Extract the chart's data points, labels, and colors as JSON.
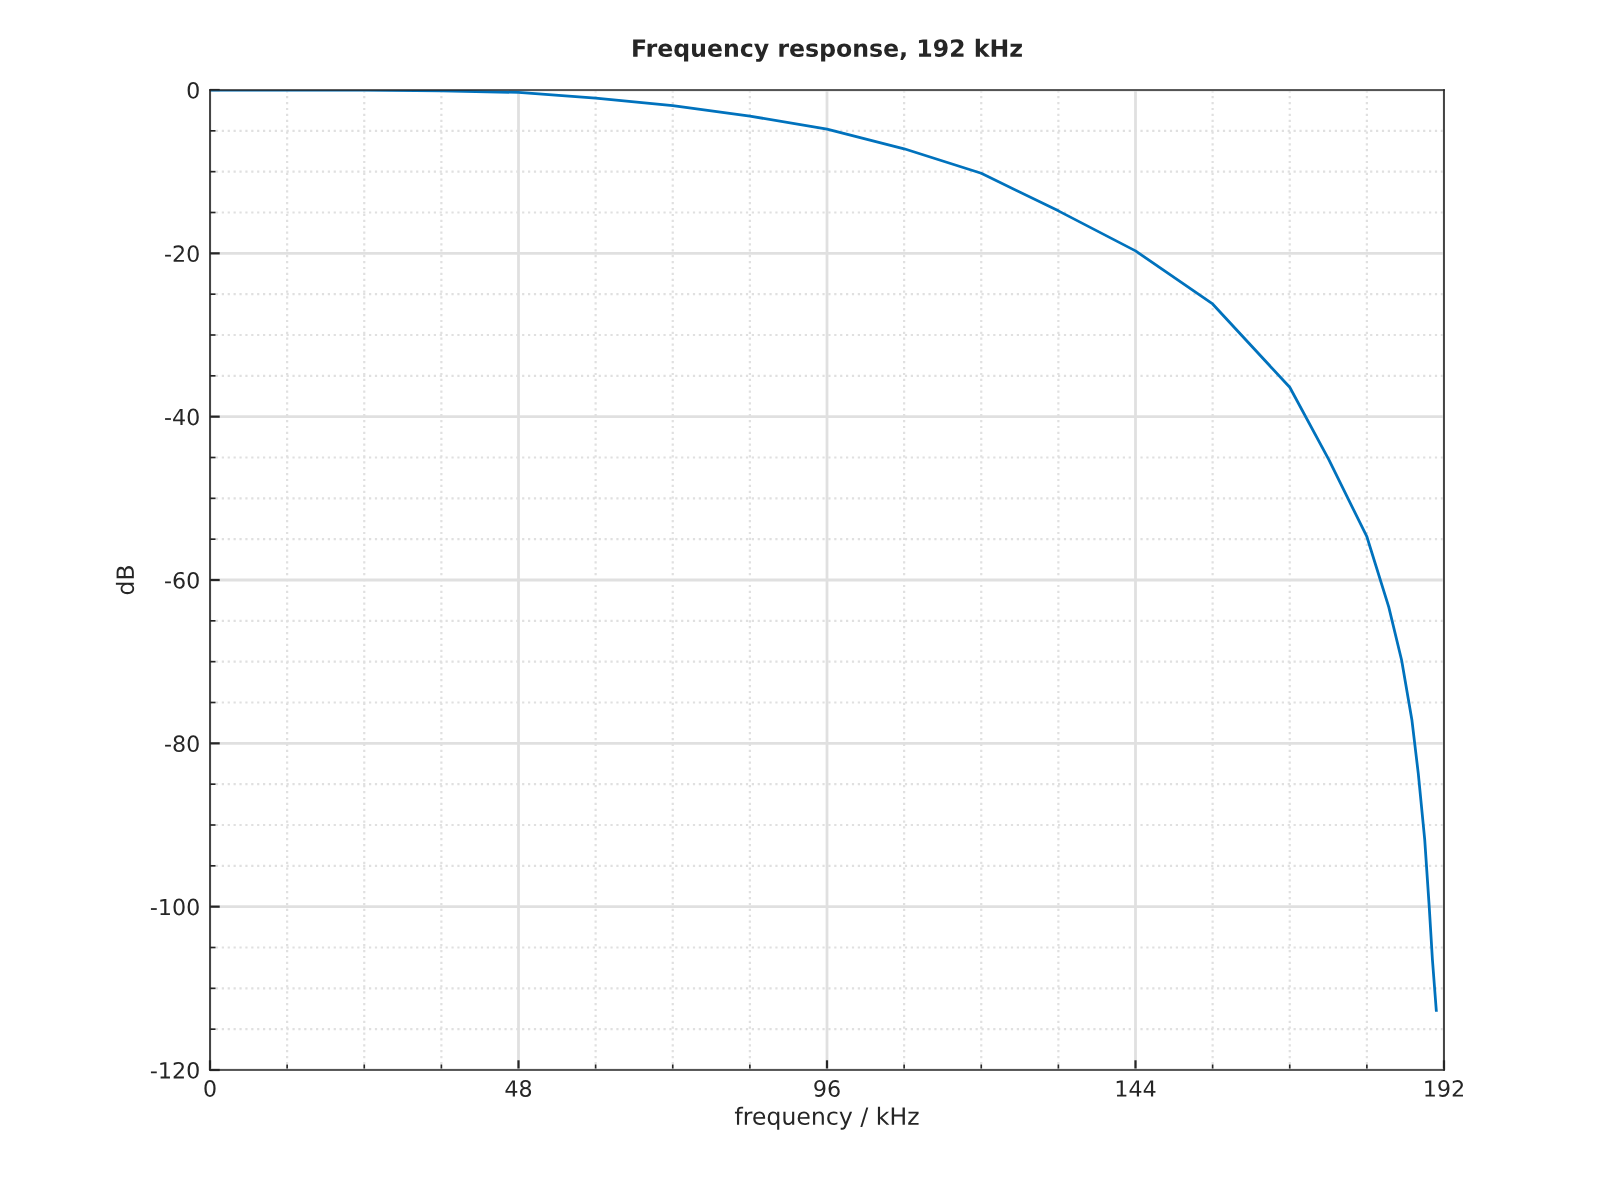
{
  "chart_data": {
    "type": "line",
    "title": "Frequency response, 192 kHz",
    "xlabel": "frequency / kHz",
    "ylabel": "dB",
    "x": [
      0,
      12,
      24,
      36,
      48,
      60,
      72,
      84,
      96,
      108,
      120,
      132,
      144,
      156,
      168,
      174.1,
      180,
      183.4,
      185.4,
      187.0,
      188.0,
      189.0,
      189.7,
      190.2,
      190.8
    ],
    "series": [
      {
        "color": "#0072bd",
        "values": [
          0,
          0,
          0,
          -0.1,
          -0.3,
          -1.0,
          -1.9,
          -3.2,
          -4.8,
          -7.2,
          -10.2,
          -14.8,
          -19.7,
          -26.2,
          -36.4,
          -45.3,
          -54.7,
          -63.3,
          -69.8,
          -77.1,
          -83.7,
          -91.8,
          -100,
          -106.5,
          -112.7
        ]
      }
    ],
    "xlim": [
      0,
      192
    ],
    "xticks": [
      0,
      48,
      96,
      144,
      192
    ],
    "ylim": [
      -120,
      0
    ],
    "yticks": [
      -120,
      -100,
      -80,
      -60,
      -40,
      -20,
      0
    ],
    "grid": true
  }
}
